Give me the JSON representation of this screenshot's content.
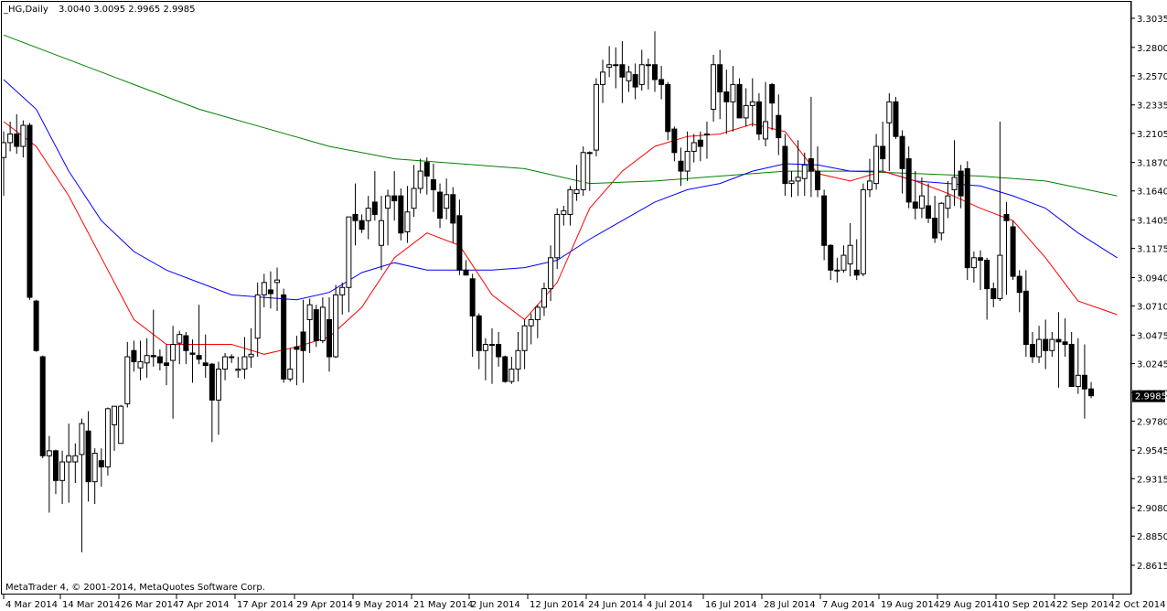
{
  "header": {
    "symbol_period": "_HG,Daily",
    "ohlc": "3.0040 3.0095 2.9965 2.9985"
  },
  "footer": {
    "copyright": "MetaTrader 4, © 2001-2014, MetaQuotes Software Corp."
  },
  "colors": {
    "background": "#ffffff",
    "candle": "#000000",
    "ma_fast": "#ff0000",
    "ma_mid": "#0000ff",
    "ma_slow": "#008000"
  },
  "chart_data": {
    "type": "candlestick",
    "title": "_HG,Daily",
    "ylim": [
      2.8615,
      3.3035
    ],
    "yticks": [
      "3.3035",
      "3.2800",
      "3.2570",
      "3.2335",
      "3.2105",
      "3.1870",
      "3.1640",
      "3.1405",
      "3.1175",
      "3.0940",
      "3.0710",
      "3.0475",
      "3.0245",
      "3.0010",
      "2.9780",
      "2.9545",
      "2.9315",
      "2.9080",
      "2.8850",
      "2.8615"
    ],
    "xticks": [
      "4 Mar 2014",
      "14 Mar 2014",
      "26 Mar 2014",
      "7 Apr 2014",
      "17 Apr 2014",
      "29 Apr 2014",
      "9 May 2014",
      "21 May 2014",
      "2 Jun 2014",
      "12 Jun 2014",
      "24 Jun 2014",
      "4 Jul 2014",
      "16 Jul 2014",
      "28 Jul 2014",
      "7 Aug 2014",
      "19 Aug 2014",
      "29 Aug 2014",
      "10 Sep 2014",
      "22 Sep 2014",
      "2 Oct 2014"
    ],
    "current_price": "2.9985",
    "candles": [
      [
        3.191,
        3.212,
        3.16,
        3.203
      ],
      [
        3.203,
        3.22,
        3.196,
        3.21
      ],
      [
        3.21,
        3.226,
        3.194,
        3.2
      ],
      [
        3.2,
        3.221,
        3.191,
        3.217
      ],
      [
        3.217,
        3.219,
        3.076,
        3.078
      ],
      [
        3.075,
        3.076,
        3.034,
        3.035
      ],
      [
        3.03,
        3.031,
        2.948,
        2.95
      ],
      [
        2.95,
        2.966,
        2.904,
        2.954
      ],
      [
        2.954,
        2.955,
        2.919,
        2.93
      ],
      [
        2.93,
        2.954,
        2.911,
        2.945
      ],
      [
        2.945,
        2.976,
        2.912,
        2.95
      ],
      [
        2.945,
        2.96,
        2.928,
        2.95
      ],
      [
        2.951,
        2.98,
        2.872,
        2.976
      ],
      [
        2.97,
        2.986,
        2.913,
        2.929
      ],
      [
        2.929,
        2.956,
        2.911,
        2.952
      ],
      [
        2.946,
        2.956,
        2.925,
        2.941
      ],
      [
        2.941,
        2.989,
        2.934,
        2.988
      ],
      [
        2.975,
        2.99,
        2.954,
        2.99
      ],
      [
        2.96,
        2.991,
        2.96,
        2.99
      ],
      [
        2.992,
        3.042,
        2.989,
        3.03
      ],
      [
        3.035,
        3.043,
        3.018,
        3.026
      ],
      [
        3.021,
        3.043,
        3.011,
        3.026
      ],
      [
        3.025,
        3.045,
        3.013,
        3.031
      ],
      [
        3.031,
        3.068,
        3.022,
        3.03
      ],
      [
        3.03,
        3.036,
        3.019,
        3.025
      ],
      [
        3.025,
        3.04,
        3.007,
        3.023
      ],
      [
        3.027,
        3.055,
        2.98,
        3.04
      ],
      [
        3.041,
        3.051,
        3.024,
        3.048
      ],
      [
        3.047,
        3.05,
        3.024,
        3.035
      ],
      [
        3.033,
        3.044,
        3.009,
        3.032
      ],
      [
        3.031,
        3.072,
        3.024,
        3.028
      ],
      [
        3.025,
        3.048,
        3.013,
        3.023
      ],
      [
        3.024,
        3.025,
        2.961,
        2.995
      ],
      [
        2.995,
        3.026,
        2.967,
        3.02
      ],
      [
        3.02,
        3.033,
        3.011,
        3.03
      ],
      [
        3.03,
        3.032,
        3.025,
        3.03
      ],
      [
        3.019,
        3.03,
        3.013,
        3.02
      ],
      [
        3.02,
        3.046,
        3.012,
        3.03
      ],
      [
        3.03,
        3.053,
        3.021,
        3.032
      ],
      [
        3.045,
        3.09,
        3.03,
        3.08
      ],
      [
        3.08,
        3.097,
        3.07,
        3.09
      ],
      [
        3.084,
        3.099,
        3.069,
        3.081
      ],
      [
        3.09,
        3.102,
        3.067,
        3.092
      ],
      [
        3.08,
        3.085,
        3.009,
        3.012
      ],
      [
        3.012,
        3.037,
        3.01,
        3.02
      ],
      [
        3.038,
        3.047,
        3.007,
        3.036
      ],
      [
        3.05,
        3.076,
        3.009,
        3.035
      ],
      [
        3.06,
        3.077,
        3.033,
        3.072
      ],
      [
        3.068,
        3.072,
        3.038,
        3.043
      ],
      [
        3.043,
        3.078,
        3.041,
        3.07
      ],
      [
        3.06,
        3.078,
        3.018,
        3.03
      ],
      [
        3.03,
        3.088,
        3.029,
        3.08
      ],
      [
        3.08,
        3.09,
        3.064,
        3.086
      ],
      [
        3.086,
        3.14,
        3.066,
        3.143
      ],
      [
        3.145,
        3.17,
        3.12,
        3.14
      ],
      [
        3.14,
        3.145,
        3.13,
        3.133
      ],
      [
        3.14,
        3.16,
        3.125,
        3.15
      ],
      [
        3.155,
        3.18,
        3.14,
        3.145
      ],
      [
        3.12,
        3.16,
        3.1,
        3.14
      ],
      [
        3.15,
        3.165,
        3.12,
        3.16
      ],
      [
        3.16,
        3.18,
        3.14,
        3.156
      ],
      [
        3.16,
        3.166,
        3.124,
        3.13
      ],
      [
        3.131,
        3.168,
        3.122,
        3.147
      ],
      [
        3.15,
        3.185,
        3.143,
        3.166
      ],
      [
        3.166,
        3.19,
        3.162,
        3.18
      ],
      [
        3.187,
        3.191,
        3.161,
        3.176
      ],
      [
        3.173,
        3.186,
        3.147,
        3.165
      ],
      [
        3.163,
        3.17,
        3.134,
        3.142
      ],
      [
        3.15,
        3.174,
        3.141,
        3.161
      ],
      [
        3.161,
        3.167,
        3.122,
        3.138
      ],
      [
        3.144,
        3.157,
        3.096,
        3.1
      ],
      [
        3.1,
        3.108,
        3.097,
        3.096
      ],
      [
        3.093,
        3.097,
        3.03,
        3.063
      ],
      [
        3.063,
        3.065,
        3.02,
        3.035
      ],
      [
        3.035,
        3.045,
        3.011,
        3.04
      ],
      [
        3.04,
        3.053,
        3.008,
        3.04
      ],
      [
        3.04,
        3.05,
        3.022,
        3.03
      ],
      [
        3.03,
        3.031,
        3.009,
        3.01
      ],
      [
        3.01,
        3.03,
        3.008,
        3.02
      ],
      [
        3.02,
        3.05,
        3.01,
        3.035
      ],
      [
        3.035,
        3.06,
        3.02,
        3.055
      ],
      [
        3.055,
        3.065,
        3.04,
        3.06
      ],
      [
        3.06,
        3.072,
        3.045,
        3.07
      ],
      [
        3.07,
        3.09,
        3.063,
        3.085
      ],
      [
        3.085,
        3.12,
        3.075,
        3.11
      ],
      [
        3.11,
        3.15,
        3.101,
        3.145
      ],
      [
        3.145,
        3.152,
        3.136,
        3.148
      ],
      [
        3.145,
        3.168,
        3.136,
        3.165
      ],
      [
        3.162,
        3.185,
        3.156,
        3.165
      ],
      [
        3.165,
        3.2,
        3.16,
        3.195
      ],
      [
        3.195,
        3.196,
        3.164,
        3.195
      ],
      [
        3.197,
        3.255,
        3.192,
        3.25
      ],
      [
        3.25,
        3.27,
        3.235,
        3.26
      ],
      [
        3.264,
        3.281,
        3.256,
        3.266
      ],
      [
        3.266,
        3.28,
        3.247,
        3.266
      ],
      [
        3.266,
        3.285,
        3.235,
        3.256
      ],
      [
        3.253,
        3.265,
        3.244,
        3.26
      ],
      [
        3.258,
        3.267,
        3.238,
        3.248
      ],
      [
        3.25,
        3.278,
        3.245,
        3.266
      ],
      [
        3.266,
        3.271,
        3.246,
        3.266
      ],
      [
        3.266,
        3.293,
        3.244,
        3.254
      ],
      [
        3.254,
        3.265,
        3.238,
        3.25
      ],
      [
        3.25,
        3.252,
        3.205,
        3.212
      ],
      [
        3.214,
        3.216,
        3.188,
        3.195
      ],
      [
        3.188,
        3.199,
        3.168,
        3.18
      ],
      [
        3.18,
        3.212,
        3.172,
        3.196
      ],
      [
        3.196,
        3.21,
        3.187,
        3.203
      ],
      [
        3.205,
        3.212,
        3.188,
        3.2
      ],
      [
        3.21,
        3.22,
        3.19,
        3.21
      ],
      [
        3.23,
        3.274,
        3.22,
        3.266
      ],
      [
        3.266,
        3.278,
        3.222,
        3.244
      ],
      [
        3.244,
        3.262,
        3.21,
        3.236
      ],
      [
        3.236,
        3.265,
        3.212,
        3.25
      ],
      [
        3.25,
        3.255,
        3.223,
        3.223
      ],
      [
        3.223,
        3.247,
        3.216,
        3.233
      ],
      [
        3.233,
        3.255,
        3.216,
        3.236
      ],
      [
        3.236,
        3.243,
        3.205,
        3.21
      ],
      [
        3.206,
        3.252,
        3.2,
        3.22
      ],
      [
        3.25,
        3.251,
        3.213,
        3.235
      ],
      [
        3.225,
        3.242,
        3.193,
        3.207
      ],
      [
        3.2,
        3.21,
        3.16,
        3.17
      ],
      [
        3.17,
        3.18,
        3.159,
        3.172
      ],
      [
        3.172,
        3.205,
        3.16,
        3.175
      ],
      [
        3.174,
        3.195,
        3.16,
        3.185
      ],
      [
        3.19,
        3.24,
        3.159,
        3.18
      ],
      [
        3.18,
        3.2,
        3.159,
        3.165
      ],
      [
        3.16,
        3.165,
        3.108,
        3.12
      ],
      [
        3.12,
        3.121,
        3.092,
        3.1
      ],
      [
        3.1,
        3.11,
        3.09,
        3.1
      ],
      [
        3.1,
        3.12,
        3.098,
        3.112
      ],
      [
        3.105,
        3.138,
        3.095,
        3.12
      ],
      [
        3.1,
        3.125,
        3.092,
        3.096
      ],
      [
        3.097,
        3.17,
        3.095,
        3.165
      ],
      [
        3.165,
        3.19,
        3.159,
        3.172
      ],
      [
        3.17,
        3.21,
        3.165,
        3.2
      ],
      [
        3.2,
        3.22,
        3.18,
        3.19
      ],
      [
        3.219,
        3.243,
        3.18,
        3.236
      ],
      [
        3.236,
        3.24,
        3.206,
        3.208
      ],
      [
        3.208,
        3.213,
        3.162,
        3.182
      ],
      [
        3.19,
        3.2,
        3.15,
        3.155
      ],
      [
        3.155,
        3.18,
        3.141,
        3.15
      ],
      [
        3.15,
        3.175,
        3.142,
        3.16
      ],
      [
        3.152,
        3.17,
        3.138,
        3.142
      ],
      [
        3.142,
        3.16,
        3.122,
        3.126
      ],
      [
        3.13,
        3.155,
        3.124,
        3.154
      ],
      [
        3.15,
        3.172,
        3.142,
        3.16
      ],
      [
        3.165,
        3.205,
        3.152,
        3.175
      ],
      [
        3.18,
        3.185,
        3.15,
        3.16
      ],
      [
        3.182,
        3.188,
        3.092,
        3.102
      ],
      [
        3.102,
        3.115,
        3.09,
        3.11
      ],
      [
        3.11,
        3.116,
        3.084,
        3.108
      ],
      [
        3.108,
        3.11,
        3.06,
        3.085
      ],
      [
        3.085,
        3.09,
        3.07,
        3.077
      ],
      [
        3.077,
        3.22,
        3.075,
        3.112
      ],
      [
        3.145,
        3.155,
        3.08,
        3.14
      ],
      [
        3.135,
        3.14,
        3.092,
        3.095
      ],
      [
        3.095,
        3.1,
        3.066,
        3.082
      ],
      [
        3.083,
        3.1,
        3.03,
        3.04
      ],
      [
        3.04,
        3.05,
        3.025,
        3.03
      ],
      [
        3.03,
        3.055,
        3.025,
        3.044
      ],
      [
        3.044,
        3.06,
        3.02,
        3.035
      ],
      [
        3.035,
        3.05,
        3.03,
        3.044
      ],
      [
        3.044,
        3.066,
        3.005,
        3.042
      ],
      [
        3.042,
        3.061,
        3.03,
        3.04
      ],
      [
        3.04,
        3.05,
        3.008,
        3.006
      ],
      [
        3.006,
        3.045,
        3.0,
        3.015
      ],
      [
        3.015,
        3.04,
        2.98,
        3.004
      ],
      [
        3.004,
        3.0095,
        2.9965,
        2.9985
      ]
    ],
    "ma_fast": [
      [
        0,
        3.22
      ],
      [
        5,
        3.2
      ],
      [
        10,
        3.16
      ],
      [
        15,
        3.11
      ],
      [
        20,
        3.06
      ],
      [
        25,
        3.04
      ],
      [
        30,
        3.04
      ],
      [
        35,
        3.04
      ],
      [
        40,
        3.032
      ],
      [
        45,
        3.038
      ],
      [
        50,
        3.046
      ],
      [
        55,
        3.07
      ],
      [
        60,
        3.11
      ],
      [
        65,
        3.13
      ],
      [
        70,
        3.12
      ],
      [
        75,
        3.08
      ],
      [
        80,
        3.06
      ],
      [
        85,
        3.09
      ],
      [
        90,
        3.15
      ],
      [
        95,
        3.18
      ],
      [
        100,
        3.2
      ],
      [
        105,
        3.208
      ],
      [
        110,
        3.21
      ],
      [
        115,
        3.218
      ],
      [
        120,
        3.212
      ],
      [
        125,
        3.178
      ],
      [
        130,
        3.172
      ],
      [
        135,
        3.18
      ],
      [
        140,
        3.172
      ],
      [
        145,
        3.162
      ],
      [
        150,
        3.15
      ],
      [
        155,
        3.14
      ],
      [
        160,
        3.11
      ],
      [
        165,
        3.075
      ],
      [
        171,
        3.064
      ]
    ],
    "ma_mid": [
      [
        0,
        3.254
      ],
      [
        5,
        3.23
      ],
      [
        10,
        3.18
      ],
      [
        15,
        3.14
      ],
      [
        20,
        3.115
      ],
      [
        25,
        3.1
      ],
      [
        30,
        3.09
      ],
      [
        35,
        3.08
      ],
      [
        40,
        3.078
      ],
      [
        45,
        3.076
      ],
      [
        50,
        3.082
      ],
      [
        55,
        3.098
      ],
      [
        60,
        3.106
      ],
      [
        65,
        3.1
      ],
      [
        70,
        3.1
      ],
      [
        75,
        3.1
      ],
      [
        80,
        3.102
      ],
      [
        85,
        3.108
      ],
      [
        90,
        3.125
      ],
      [
        95,
        3.14
      ],
      [
        100,
        3.155
      ],
      [
        105,
        3.165
      ],
      [
        110,
        3.17
      ],
      [
        115,
        3.18
      ],
      [
        120,
        3.186
      ],
      [
        125,
        3.185
      ],
      [
        130,
        3.18
      ],
      [
        135,
        3.18
      ],
      [
        140,
        3.172
      ],
      [
        145,
        3.17
      ],
      [
        150,
        3.168
      ],
      [
        155,
        3.16
      ],
      [
        160,
        3.15
      ],
      [
        165,
        3.13
      ],
      [
        171,
        3.11
      ]
    ],
    "ma_slow": [
      [
        0,
        3.29
      ],
      [
        10,
        3.27
      ],
      [
        20,
        3.25
      ],
      [
        30,
        3.23
      ],
      [
        40,
        3.215
      ],
      [
        50,
        3.2
      ],
      [
        60,
        3.19
      ],
      [
        70,
        3.186
      ],
      [
        80,
        3.182
      ],
      [
        90,
        3.17
      ],
      [
        100,
        3.172
      ],
      [
        110,
        3.176
      ],
      [
        120,
        3.18
      ],
      [
        130,
        3.18
      ],
      [
        140,
        3.178
      ],
      [
        150,
        3.176
      ],
      [
        160,
        3.172
      ],
      [
        171,
        3.16
      ]
    ]
  }
}
